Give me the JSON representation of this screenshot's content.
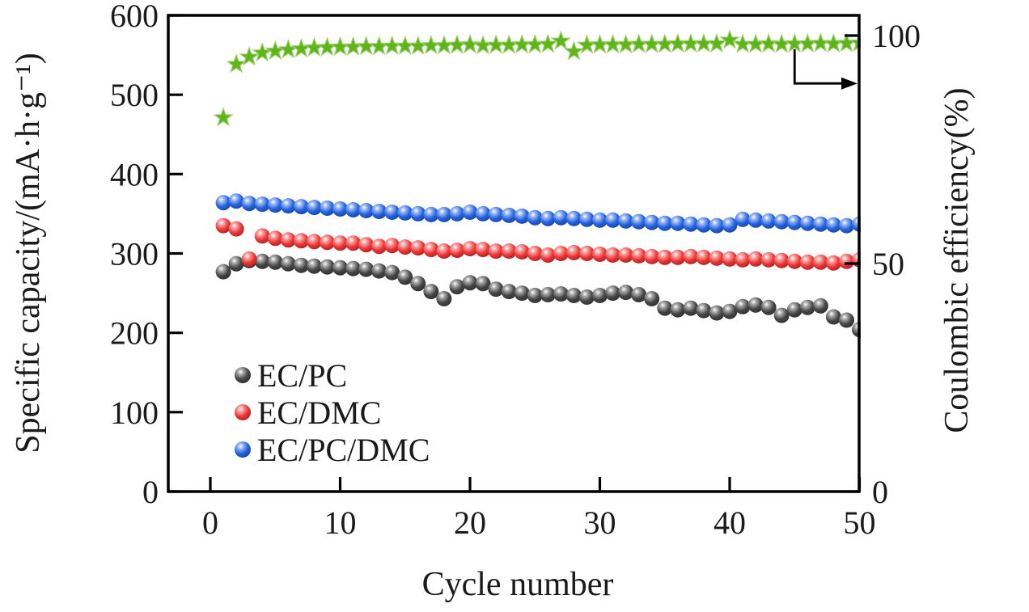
{
  "figure": {
    "background": "#ffffff",
    "axis_color": "#000000"
  },
  "chart_data": {
    "type": "scatter",
    "title": "",
    "xlabel": "Cycle number",
    "ylabel_left": "Specific capacity/(mA·h·g⁻¹)",
    "ylabel_right": "Coulombic efficiency(%)",
    "x_ticks": [
      0,
      10,
      20,
      30,
      40,
      50
    ],
    "y_ticks_left": [
      0,
      100,
      200,
      300,
      400,
      500,
      600
    ],
    "y_ticks_right": [
      0,
      50,
      100
    ],
    "xlim": [
      -3.2,
      50
    ],
    "ylim_left": [
      0,
      600
    ],
    "ylim_right": [
      0,
      104.5
    ],
    "grid": false,
    "legend_position": "lower-left-inside",
    "x_cycles": {
      "from": 1,
      "to": 50,
      "step": 1
    },
    "series": [
      {
        "name": "EC/PC",
        "axis": "left",
        "marker": "sphere",
        "color": "#454545",
        "in_legend": true,
        "values": [
          277,
          287,
          291,
          290,
          289,
          287,
          285,
          284,
          283,
          282,
          281,
          280,
          278,
          276,
          270,
          262,
          252,
          243,
          258,
          263,
          262,
          255,
          252,
          250,
          247,
          248,
          249,
          247,
          245,
          247,
          250,
          251,
          248,
          243,
          231,
          229,
          231,
          228,
          225,
          227,
          233,
          235,
          232,
          222,
          229,
          232,
          234,
          220,
          216,
          204
        ]
      },
      {
        "name": "EC/DMC",
        "axis": "left",
        "marker": "sphere",
        "color": "#ee3434",
        "in_legend": true,
        "values": [
          335,
          331,
          293,
          322,
          319,
          317,
          316,
          315,
          314,
          313,
          313,
          311,
          309,
          310,
          308,
          307,
          305,
          303,
          304,
          306,
          305,
          303,
          303,
          302,
          300,
          298,
          300,
          301,
          300,
          299,
          298,
          298,
          297,
          296,
          295,
          295,
          296,
          295,
          294,
          293,
          292,
          293,
          292,
          291,
          290,
          289,
          289,
          288,
          290,
          292
        ]
      },
      {
        "name": "EC/PC/DMC",
        "axis": "left",
        "marker": "sphere",
        "color": "#2262e0",
        "in_legend": true,
        "values": [
          364,
          366,
          363,
          362,
          361,
          360,
          359,
          358,
          357,
          356,
          355,
          354,
          353,
          352,
          351,
          350,
          349,
          349,
          350,
          352,
          350,
          349,
          348,
          347,
          345,
          344,
          345,
          344,
          343,
          342,
          342,
          341,
          340,
          339,
          338,
          338,
          337,
          336,
          335,
          336,
          343,
          342,
          341,
          340,
          339,
          338,
          337,
          336,
          335,
          337
        ]
      },
      {
        "name": "Coulombic efficiency",
        "axis": "right",
        "marker": "star",
        "color": "#5fb418",
        "in_legend": false,
        "values": [
          82,
          93.7,
          95.3,
          96.2,
          96.6,
          96.9,
          97.1,
          97.3,
          97.4,
          97.5,
          97.5,
          97.6,
          97.6,
          97.7,
          97.7,
          97.7,
          97.8,
          97.8,
          97.9,
          98,
          97.8,
          97.9,
          97.9,
          98,
          98,
          98.1,
          98.8,
          96.5,
          97.9,
          98,
          98,
          98,
          98.1,
          98.1,
          98.1,
          98.2,
          98.2,
          98.2,
          98.2,
          99,
          98.1,
          98.1,
          98.2,
          98.1,
          98.2,
          98.2,
          98.3,
          98.2,
          98.3,
          98.4
        ]
      }
    ],
    "legend": {
      "items": [
        {
          "label": "EC/PC",
          "series_index": 0
        },
        {
          "label": "EC/DMC",
          "series_index": 1
        },
        {
          "label": "EC/PC/DMC",
          "series_index": 2
        }
      ]
    },
    "annotation_arrow": {
      "meaning": "stars read on right axis",
      "cycle": 45,
      "from_efficiency": 97,
      "elbow_efficiency": 89.5,
      "points_to": "right-axis"
    }
  }
}
